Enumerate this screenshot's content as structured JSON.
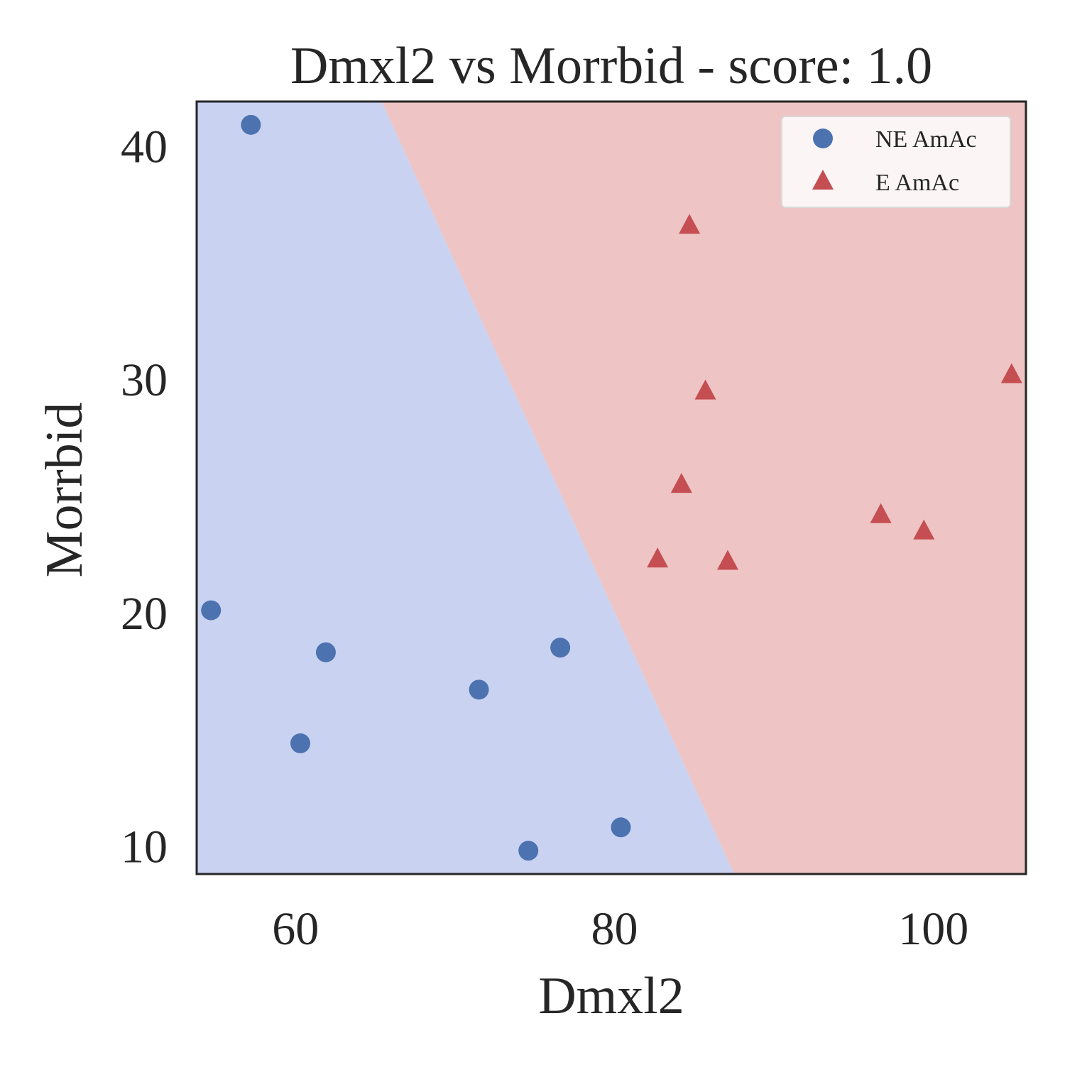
{
  "chart_data": {
    "type": "scatter",
    "title": "Dmxl2 vs Morrbid - score: 1.0",
    "xlabel": "Dmxl2",
    "ylabel": "Morrbid",
    "xlim": [
      53.8,
      105.8
    ],
    "ylim": [
      8.8,
      41.9
    ],
    "xticks": [
      60,
      80,
      100
    ],
    "yticks": [
      10,
      20,
      30,
      40
    ],
    "grid": false,
    "legend_position": "top-right",
    "decision_regions": {
      "boundary": [
        [
          65.4,
          41.9
        ],
        [
          87.5,
          8.8
        ]
      ],
      "left_class": "NE AmAc",
      "right_class": "E AmAc"
    },
    "series": [
      {
        "name": "NE AmAc",
        "marker": "circle",
        "color": "#4c72b0",
        "region_color": "#c9d2f1",
        "points": [
          {
            "x": 57.2,
            "y": 40.9
          },
          {
            "x": 54.7,
            "y": 20.1
          },
          {
            "x": 61.9,
            "y": 18.3
          },
          {
            "x": 60.3,
            "y": 14.4
          },
          {
            "x": 71.5,
            "y": 16.7
          },
          {
            "x": 76.6,
            "y": 18.5
          },
          {
            "x": 74.6,
            "y": 9.8
          },
          {
            "x": 80.4,
            "y": 10.8
          }
        ]
      },
      {
        "name": "E AmAc",
        "marker": "triangle",
        "color": "#c44e52",
        "region_color": "#eec4c4",
        "points": [
          {
            "x": 84.7,
            "y": 36.6
          },
          {
            "x": 85.7,
            "y": 29.5
          },
          {
            "x": 84.2,
            "y": 25.5
          },
          {
            "x": 82.7,
            "y": 22.3
          },
          {
            "x": 87.1,
            "y": 22.2
          },
          {
            "x": 96.7,
            "y": 24.2
          },
          {
            "x": 99.4,
            "y": 23.5
          },
          {
            "x": 104.9,
            "y": 30.2
          }
        ]
      }
    ]
  }
}
